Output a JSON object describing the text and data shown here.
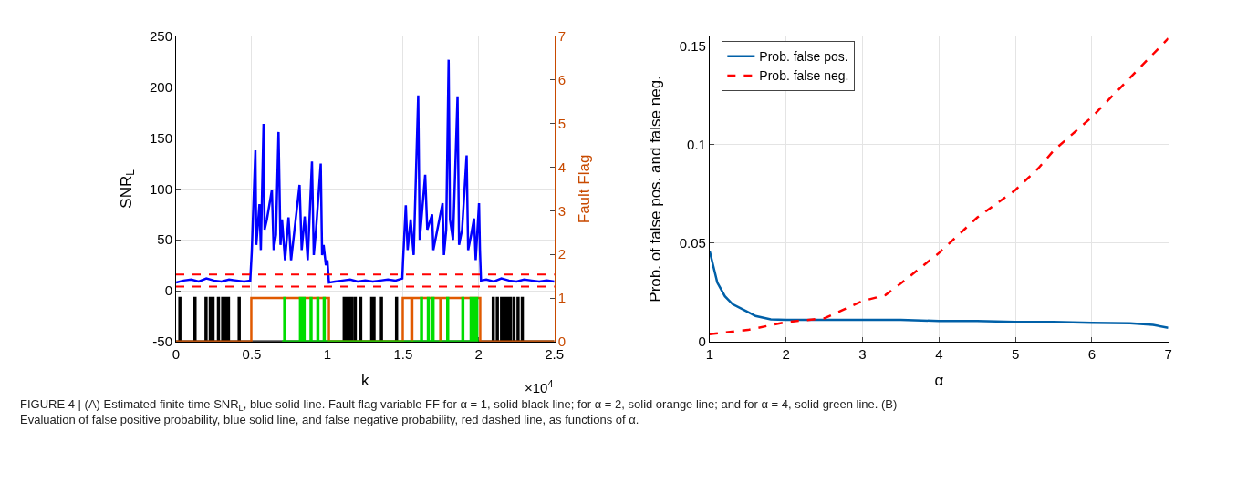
{
  "chart_data": [
    {
      "type": "line",
      "xlabel": "k",
      "ylabel": "SNR$_{L}$",
      "y2label": "Fault Flag",
      "xlim": [
        0,
        2.5
      ],
      "xticks": [
        0,
        0.5,
        1,
        1.5,
        2,
        2.5
      ],
      "ylim": [
        -50,
        250
      ],
      "yticks": [
        -50,
        0,
        50,
        100,
        150,
        200,
        250
      ],
      "y2lim": [
        0,
        7
      ],
      "y2ticks": [
        0,
        1,
        2,
        3,
        4,
        5,
        6,
        7
      ],
      "grid": true,
      "legend": false,
      "annotations": [
        "×10$^{4}$",
        "FIGURE 4 | (A) Estimated finite time SNR$_{L}$, blue solid line. Fault flag variable FF for α = 1, solid black line; for α = 2, solid orange line; and for α = 4, solid green line. (B) Evaluation of false positive probability, blue solid line, and false negative probability, red dashed line, as functions of α."
      ],
      "ref_lines": [
        {
          "axis": "y",
          "value": 16,
          "color": "#ff0000",
          "line_style": "dashed"
        },
        {
          "axis": "y",
          "value": 4,
          "color": "#ff0000",
          "line_style": "dashed"
        }
      ],
      "series": [
        {
          "type": "step",
          "axis": "y2",
          "color": "#000000",
          "x": [
            0,
            0.022,
            0.028,
            0.122,
            0.128,
            0.195,
            0.201,
            0.223,
            0.229,
            0.241,
            0.247,
            0.277,
            0.283,
            0.305,
            0.311,
            0.318,
            0.324,
            0.33,
            0.336,
            0.343,
            0.349,
            0.414,
            0.42,
            1.108,
            1.114,
            1.122,
            1.128,
            1.135,
            1.141,
            1.148,
            1.154,
            1.159,
            1.165,
            1.181,
            1.187,
            1.217,
            1.223,
            1.29,
            1.296,
            1.305,
            1.311,
            1.354,
            1.36,
            1.454,
            1.46,
            2.093,
            2.099,
            2.12,
            2.126,
            2.148,
            2.154,
            2.162,
            2.168,
            2.177,
            2.183,
            2.192,
            2.198,
            2.206,
            2.212,
            2.23,
            2.236,
            2.257,
            2.263,
            2.285,
            2.291,
            2.5
          ],
          "values": [
            0,
            1,
            0,
            1,
            0,
            1,
            0,
            1,
            0,
            1,
            0,
            1,
            0,
            1,
            0,
            1,
            0,
            1,
            0,
            1,
            0,
            1,
            0,
            1,
            0,
            1,
            0,
            1,
            0,
            1,
            0,
            1,
            0,
            1,
            0,
            1,
            0,
            1,
            0,
            1,
            0,
            1,
            0,
            1,
            0,
            1,
            0,
            1,
            0,
            1,
            0,
            1,
            0,
            1,
            0,
            1,
            0,
            1,
            0,
            1,
            0,
            1,
            0,
            1,
            0,
            0
          ]
        },
        {
          "type": "step",
          "axis": "y2",
          "color": "#e05a00",
          "x": [
            0,
            0.497,
            1.01,
            1.498,
            1.555,
            1.561,
            1.746,
            1.752,
            2.01,
            2.5
          ],
          "values": [
            0,
            1,
            0,
            1,
            0,
            1,
            0,
            1,
            0,
            0
          ]
        },
        {
          "type": "step",
          "axis": "y2",
          "color": "#00dd00",
          "x": [
            0.7,
            0.715,
            0.721,
            0.819,
            0.825,
            0.83,
            0.836,
            0.843,
            0.849,
            0.889,
            0.895,
            0.934,
            0.94,
            0.976,
            0.982,
            1.619,
            1.625,
            1.664,
            1.67,
            1.695,
            1.701,
            1.792,
            1.798,
            1.892,
            1.898,
            1.947,
            1.953,
            1.969,
            1.975,
            1.984,
            1.99,
            2.0
          ],
          "values": [
            0,
            1,
            0,
            1,
            0,
            1,
            0,
            1,
            0,
            1,
            0,
            1,
            0,
            1,
            0,
            1,
            0,
            1,
            0,
            1,
            0,
            1,
            0,
            1,
            0,
            1,
            0,
            1,
            0,
            1,
            0,
            0
          ]
        },
        {
          "type": "line",
          "axis": "y",
          "color": "#0000ff",
          "x": [
            0,
            0.05,
            0.1,
            0.15,
            0.2,
            0.25,
            0.3,
            0.35,
            0.4,
            0.45,
            0.49,
            0.5,
            0.524,
            0.53,
            0.551,
            0.56,
            0.578,
            0.585,
            0.6,
            0.633,
            0.645,
            0.66,
            0.677,
            0.69,
            0.7,
            0.72,
            0.743,
            0.76,
            0.816,
            0.83,
            0.85,
            0.87,
            0.898,
            0.91,
            0.925,
            0.956,
            0.965,
            0.975,
            0.99,
            1.0,
            1.01,
            1.05,
            1.1,
            1.15,
            1.2,
            1.25,
            1.3,
            1.35,
            1.4,
            1.45,
            1.495,
            1.5,
            1.518,
            1.53,
            1.55,
            1.57,
            1.6,
            1.61,
            1.646,
            1.66,
            1.692,
            1.7,
            1.761,
            1.77,
            1.785,
            1.801,
            1.81,
            1.83,
            1.86,
            1.87,
            1.89,
            1.92,
            1.93,
            1.95,
            1.969,
            1.98,
            2.002,
            2.008,
            2.015,
            2.05,
            2.1,
            2.15,
            2.2,
            2.25,
            2.3,
            2.35,
            2.4,
            2.45,
            2.5
          ],
          "values": [
            8,
            10,
            11,
            9,
            12,
            10,
            9,
            11,
            10,
            9,
            10,
            38,
            138,
            45,
            85,
            40,
            164,
            60,
            70,
            99,
            40,
            55,
            156,
            45,
            70,
            30,
            72,
            30,
            104,
            40,
            73,
            30,
            127,
            35,
            60,
            125,
            35,
            45,
            25,
            30,
            8,
            9,
            10,
            11,
            9,
            10,
            9,
            10,
            11,
            10,
            12,
            30,
            84,
            40,
            70,
            35,
            192,
            50,
            114,
            60,
            75,
            40,
            86,
            35,
            60,
            227,
            70,
            50,
            191,
            45,
            60,
            133,
            40,
            55,
            71,
            30,
            86,
            40,
            10,
            11,
            9,
            12,
            10,
            9,
            11,
            10,
            9,
            10,
            9
          ]
        }
      ]
    },
    {
      "type": "line",
      "xlabel": "α",
      "ylabel": "Prob. of false pos. and false neg.",
      "xlim": [
        1,
        7
      ],
      "xticks": [
        1,
        2,
        3,
        4,
        5,
        6,
        7
      ],
      "ylim": [
        0,
        0.155
      ],
      "yticks": [
        0,
        0.05,
        0.1,
        0.15
      ],
      "grid": true,
      "legend": "top left",
      "series": [
        {
          "name": "Prob. false pos.",
          "color": "#0060a8",
          "line_style": "solid",
          "x": [
            1,
            1.1,
            1.2,
            1.3,
            1.5,
            1.6,
            1.8,
            2,
            2.5,
            3,
            3.5,
            4,
            4.5,
            5,
            5.5,
            6,
            6.5,
            6.8,
            7
          ],
          "values": [
            0.046,
            0.03,
            0.023,
            0.019,
            0.015,
            0.013,
            0.0113,
            0.011,
            0.011,
            0.011,
            0.011,
            0.0105,
            0.0105,
            0.01,
            0.01,
            0.0095,
            0.0093,
            0.0085,
            0.007
          ]
        },
        {
          "name": "Prob. false neg.",
          "color": "#ff0000",
          "line_style": "dashed",
          "x": [
            1,
            1.5,
            2,
            2.5,
            3,
            3.3,
            3.5,
            4,
            4.5,
            5,
            5.3,
            5.5,
            6,
            6.5,
            7
          ],
          "values": [
            0.0037,
            0.0059,
            0.0099,
            0.0118,
            0.0206,
            0.0236,
            0.0295,
            0.045,
            0.063,
            0.077,
            0.088,
            0.097,
            0.114,
            0.134,
            0.154
          ]
        }
      ]
    }
  ]
}
